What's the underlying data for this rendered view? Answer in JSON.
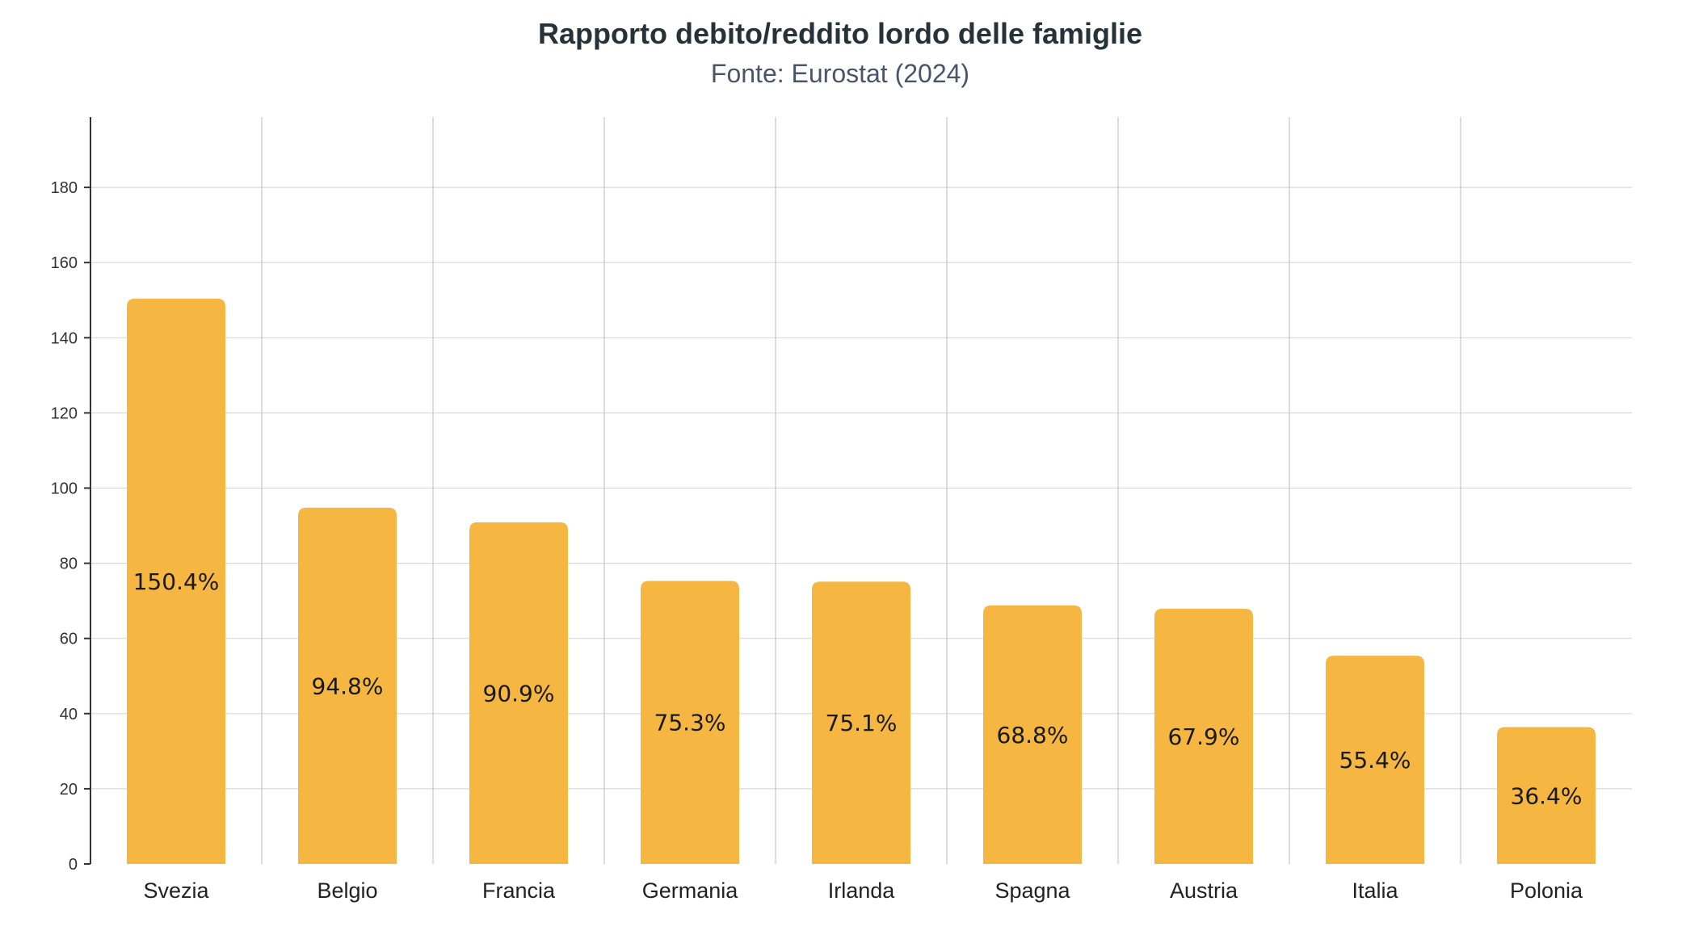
{
  "chart_data": {
    "type": "bar",
    "title": "Rapporto debito/reddito lordo delle famiglie",
    "subtitle": "Fonte: Eurostat (2024)",
    "xlabel": "",
    "ylabel": "",
    "categories": [
      "Svezia",
      "Belgio",
      "Francia",
      "Germania",
      "Irlanda",
      "Spagna",
      "Austria",
      "Italia",
      "Polonia"
    ],
    "values": [
      150.4,
      94.8,
      90.9,
      75.3,
      75.1,
      68.8,
      67.9,
      55.4,
      36.4
    ],
    "data_labels": [
      "150.4%",
      "94.8%",
      "90.9%",
      "75.3%",
      "75.1%",
      "68.8%",
      "67.9%",
      "55.4%",
      "36.4%"
    ],
    "yticks": [
      0,
      20,
      40,
      60,
      80,
      100,
      120,
      140,
      160,
      180
    ],
    "ylim": [
      0,
      200
    ],
    "grid": true,
    "legend": "none",
    "bar_color": "#F5B642"
  }
}
